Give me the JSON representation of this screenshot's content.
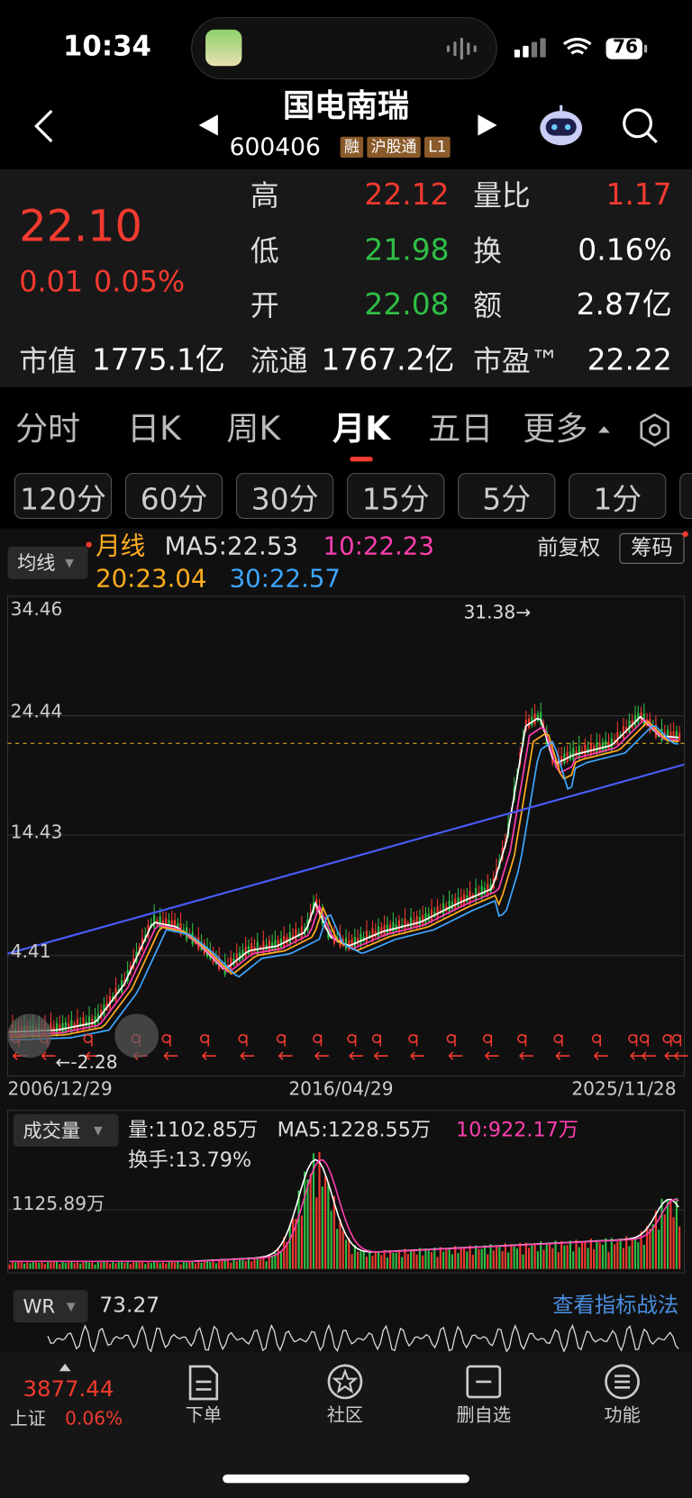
{
  "status_bar": {
    "time": "10:34",
    "battery": "76"
  },
  "header": {
    "title": "国电南瑞",
    "code": "600406",
    "badges": [
      "融",
      "沪股通",
      "L1"
    ]
  },
  "quote": {
    "price": "22.10",
    "change": "0.01",
    "change_pct": "0.05%",
    "market_cap": {
      "label": "市值",
      "value": "1775.1亿"
    },
    "stats": [
      {
        "label": "高",
        "value": "22.12"
      },
      {
        "label": "量比",
        "value": "1.17"
      },
      {
        "label": "低",
        "value": "21.98"
      },
      {
        "label": "换",
        "value": "0.16%"
      },
      {
        "label": "开",
        "value": "22.08"
      },
      {
        "label": "额",
        "value": "2.87亿"
      },
      {
        "label": "流通",
        "value": "1767.2亿"
      },
      {
        "label": "市盈™",
        "value": "22.22"
      }
    ]
  },
  "tabs": [
    "分时",
    "日K",
    "周K",
    "月K",
    "五日",
    "更多"
  ],
  "intervals": [
    "120分",
    "60分",
    "30分",
    "15分",
    "5分",
    "1分"
  ],
  "chart": {
    "indicator": "均线",
    "legend": [
      "月线",
      "MA5:22.53",
      "10:22.23",
      "20:23.04",
      "30:22.57"
    ],
    "adjust": "前复权",
    "chips": "筹码",
    "y_labels": [
      "34.46",
      "24.44",
      "14.43",
      "4.41"
    ],
    "max_label": "31.38→",
    "min_label": "←-2.28",
    "x_labels": [
      "2006/12/29",
      "2016/04/29",
      "2025/11/28"
    ]
  },
  "volume": {
    "indicator": "成交量",
    "legend": [
      "量:1102.85万",
      "MA5:1228.55万",
      "10:922.17万",
      "换手:13.79%"
    ],
    "y_label": "1125.89万"
  },
  "wr": {
    "indicator": "WR",
    "value": "73.27",
    "link": "查看指标战法"
  },
  "bottom": {
    "index_value": "3877.44",
    "index_name": "上证",
    "index_change": "0.06%",
    "nav": [
      "下单",
      "社区",
      "删自选",
      "功能"
    ]
  }
}
